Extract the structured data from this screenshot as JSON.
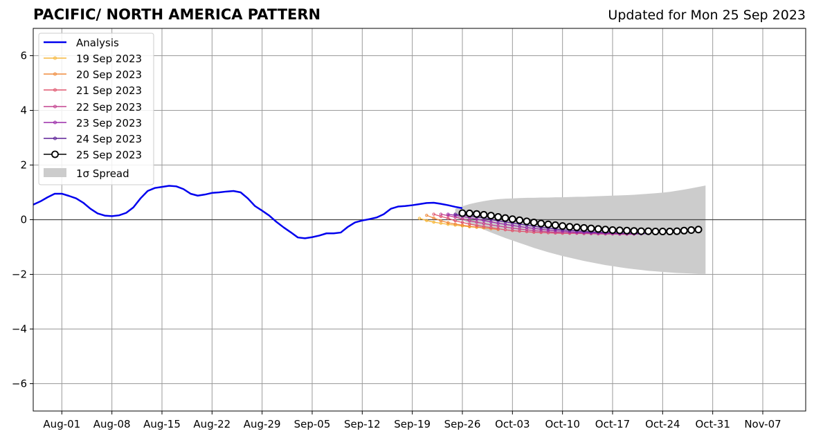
{
  "title": "PACIFIC/ NORTH AMERICA PATTERN",
  "subtitle": "Updated for Mon 25 Sep 2023",
  "chart_data": {
    "type": "line",
    "title": "PACIFIC/ NORTH AMERICA PATTERN",
    "subtitle": "Updated for Mon 25 Sep 2023",
    "xlabel": "",
    "ylabel": "",
    "x_type": "date",
    "xlim": [
      "2023-07-28",
      "2023-11-13"
    ],
    "ylim": [
      -7,
      7
    ],
    "grid": true,
    "legend_position": "top-left",
    "x_ticks": [
      {
        "date": "2023-08-01",
        "label": "Aug-01"
      },
      {
        "date": "2023-08-08",
        "label": "Aug-08"
      },
      {
        "date": "2023-08-15",
        "label": "Aug-15"
      },
      {
        "date": "2023-08-22",
        "label": "Aug-22"
      },
      {
        "date": "2023-08-29",
        "label": "Aug-29"
      },
      {
        "date": "2023-09-05",
        "label": "Sep-05"
      },
      {
        "date": "2023-09-12",
        "label": "Sep-12"
      },
      {
        "date": "2023-09-19",
        "label": "Sep-19"
      },
      {
        "date": "2023-09-26",
        "label": "Sep-26"
      },
      {
        "date": "2023-10-03",
        "label": "Oct-03"
      },
      {
        "date": "2023-10-10",
        "label": "Oct-10"
      },
      {
        "date": "2023-10-17",
        "label": "Oct-17"
      },
      {
        "date": "2023-10-24",
        "label": "Oct-24"
      },
      {
        "date": "2023-10-31",
        "label": "Oct-31"
      },
      {
        "date": "2023-11-07",
        "label": "Nov-07"
      }
    ],
    "y_ticks": [
      {
        "value": 6,
        "label": "6"
      },
      {
        "value": 4,
        "label": "4"
      },
      {
        "value": 2,
        "label": "2"
      },
      {
        "value": 0,
        "label": "0"
      },
      {
        "value": -2,
        "label": "−2"
      },
      {
        "value": -4,
        "label": "−4"
      },
      {
        "value": -6,
        "label": "−6"
      }
    ],
    "zero_line": true,
    "colors": {
      "analysis": "#0000ee",
      "spread": "#cccccc",
      "grid": "#999999",
      "zero": "#444444"
    },
    "analysis": {
      "name": "Analysis",
      "start": "2023-07-28",
      "values": [
        0.55,
        0.67,
        0.82,
        0.95,
        0.95,
        0.87,
        0.78,
        0.62,
        0.4,
        0.23,
        0.15,
        0.13,
        0.16,
        0.25,
        0.45,
        0.78,
        1.05,
        1.16,
        1.2,
        1.24,
        1.22,
        1.12,
        0.95,
        0.88,
        0.92,
        0.98,
        1.0,
        1.03,
        1.05,
        1.0,
        0.78,
        0.5,
        0.33,
        0.15,
        -0.08,
        -0.28,
        -0.46,
        -0.65,
        -0.68,
        -0.64,
        -0.58,
        -0.5,
        -0.5,
        -0.47,
        -0.26,
        -0.1,
        -0.03,
        0.02,
        0.08,
        0.2,
        0.4,
        0.48,
        0.5,
        0.53,
        0.57,
        0.61,
        0.62,
        0.58,
        0.53,
        0.47,
        0.42
      ]
    },
    "forecasts": [
      {
        "name": "19 Sep 2023",
        "color": "#f6b73c",
        "start": "2023-09-20",
        "values": [
          0.05,
          -0.03,
          -0.09,
          -0.13,
          -0.17,
          -0.2,
          -0.23,
          -0.26,
          -0.28,
          -0.3
        ]
      },
      {
        "name": "20 Sep 2023",
        "color": "#f08a3c",
        "start": "2023-09-21",
        "values": [
          0.16,
          0.06,
          -0.04,
          -0.11,
          -0.16,
          -0.2,
          -0.24,
          -0.27,
          -0.3,
          -0.33,
          -0.36
        ]
      },
      {
        "name": "21 Sep 2023",
        "color": "#e0556e",
        "start": "2023-09-22",
        "values": [
          0.2,
          0.12,
          0.05,
          -0.04,
          -0.1,
          -0.16,
          -0.21,
          -0.25,
          -0.29,
          -0.33,
          -0.37,
          -0.4,
          -0.42,
          -0.44,
          -0.46,
          -0.47,
          -0.48,
          -0.49,
          -0.5,
          -0.5,
          -0.5,
          -0.51,
          -0.51,
          -0.52,
          -0.52,
          -0.52,
          -0.53,
          -0.53
        ]
      },
      {
        "name": "22 Sep 2023",
        "color": "#c4428f",
        "start": "2023-09-23",
        "values": [
          0.2,
          0.15,
          0.09,
          0.03,
          -0.04,
          -0.09,
          -0.14,
          -0.19,
          -0.23,
          -0.27,
          -0.31,
          -0.34,
          -0.37,
          -0.4,
          -0.42,
          -0.44,
          -0.46,
          -0.47,
          -0.48,
          -0.49,
          -0.5,
          -0.51,
          -0.51,
          -0.52,
          -0.52,
          -0.53,
          -0.53,
          -0.53
        ]
      },
      {
        "name": "23 Sep 2023",
        "color": "#9a2aa8",
        "start": "2023-09-24",
        "values": [
          0.2,
          0.16,
          0.12,
          0.07,
          0.02,
          -0.03,
          -0.08,
          -0.13,
          -0.17,
          -0.21,
          -0.25,
          -0.29,
          -0.32,
          -0.35,
          -0.38,
          -0.4,
          -0.42,
          -0.44,
          -0.46,
          -0.47,
          -0.48,
          -0.49,
          -0.5,
          -0.5,
          -0.51,
          -0.51,
          -0.52,
          -0.52
        ]
      },
      {
        "name": "24 Sep 2023",
        "color": "#5b1f96",
        "start": "2023-09-25",
        "values": [
          0.2,
          0.17,
          0.14,
          0.1,
          0.06,
          0.01,
          -0.04,
          -0.08,
          -0.12,
          -0.16,
          -0.2,
          -0.24,
          -0.28,
          -0.31,
          -0.34,
          -0.37,
          -0.39,
          -0.41,
          -0.43,
          -0.45,
          -0.46,
          -0.47,
          -0.48,
          -0.49,
          -0.5,
          -0.5,
          -0.51,
          -0.51
        ]
      },
      {
        "name": "25 Sep 2023",
        "color": "#000000",
        "start": "2023-09-26",
        "values": [
          0.24,
          0.23,
          0.21,
          0.18,
          0.15,
          0.1,
          0.06,
          0.02,
          -0.02,
          -0.06,
          -0.1,
          -0.14,
          -0.17,
          -0.2,
          -0.23,
          -0.26,
          -0.28,
          -0.3,
          -0.32,
          -0.34,
          -0.36,
          -0.38,
          -0.39,
          -0.4,
          -0.41,
          -0.42,
          -0.42,
          -0.43,
          -0.43,
          -0.43,
          -0.42,
          -0.4,
          -0.38,
          -0.36
        ]
      }
    ],
    "spread": {
      "name": "1σ Spread",
      "start": "2023-09-25",
      "upper": [
        0.4,
        0.49,
        0.57,
        0.63,
        0.68,
        0.72,
        0.75,
        0.77,
        0.78,
        0.79,
        0.8,
        0.8,
        0.81,
        0.81,
        0.82,
        0.82,
        0.83,
        0.84,
        0.84,
        0.85,
        0.86,
        0.87,
        0.88,
        0.89,
        0.9,
        0.91,
        0.93,
        0.95,
        0.97,
        0.99,
        1.02,
        1.06,
        1.1,
        1.15,
        1.2,
        1.25
      ],
      "lower": [
        0.1,
        -0.02,
        -0.14,
        -0.25,
        -0.36,
        -0.47,
        -0.57,
        -0.67,
        -0.76,
        -0.85,
        -0.94,
        -1.03,
        -1.11,
        -1.19,
        -1.26,
        -1.33,
        -1.39,
        -1.45,
        -1.51,
        -1.56,
        -1.61,
        -1.66,
        -1.7,
        -1.74,
        -1.78,
        -1.81,
        -1.84,
        -1.87,
        -1.89,
        -1.91,
        -1.93,
        -1.95,
        -1.96,
        -1.97,
        -1.98,
        -1.98
      ]
    }
  },
  "legend": {
    "analysis": "Analysis",
    "f1": "19 Sep 2023",
    "f2": "20 Sep 2023",
    "f3": "21 Sep 2023",
    "f4": "22 Sep 2023",
    "f5": "23 Sep 2023",
    "f6": "24 Sep 2023",
    "f7": "25 Sep 2023",
    "spread": "1σ Spread"
  }
}
